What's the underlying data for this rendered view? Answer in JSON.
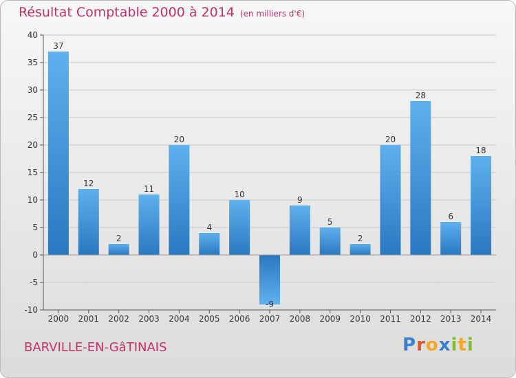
{
  "header": {
    "title": "Résultat Comptable 2000 à 2014",
    "subtitle": "(en milliers d'€)"
  },
  "footer": {
    "commune": "BARVILLE-EN-GâTINAIS",
    "logo": "Proxiti"
  },
  "colors": {
    "title": "#c4306a",
    "bar": "#3a8fd9",
    "axis": "#555555"
  },
  "chart_data": {
    "type": "bar",
    "title": "Résultat Comptable 2000 à 2014",
    "subtitle": "(en milliers d'€)",
    "categories": [
      "2000",
      "2001",
      "2002",
      "2003",
      "2004",
      "2005",
      "2006",
      "2007",
      "2008",
      "2009",
      "2010",
      "2011",
      "2012",
      "2013",
      "2014"
    ],
    "values": [
      37,
      12,
      2,
      11,
      20,
      4,
      10,
      -9,
      9,
      5,
      2,
      20,
      28,
      6,
      18
    ],
    "ylim": [
      -10,
      40
    ],
    "yticks": [
      -10,
      -5,
      0,
      5,
      10,
      15,
      20,
      25,
      30,
      35,
      40
    ],
    "grid": true,
    "xlabel": "",
    "ylabel": ""
  }
}
